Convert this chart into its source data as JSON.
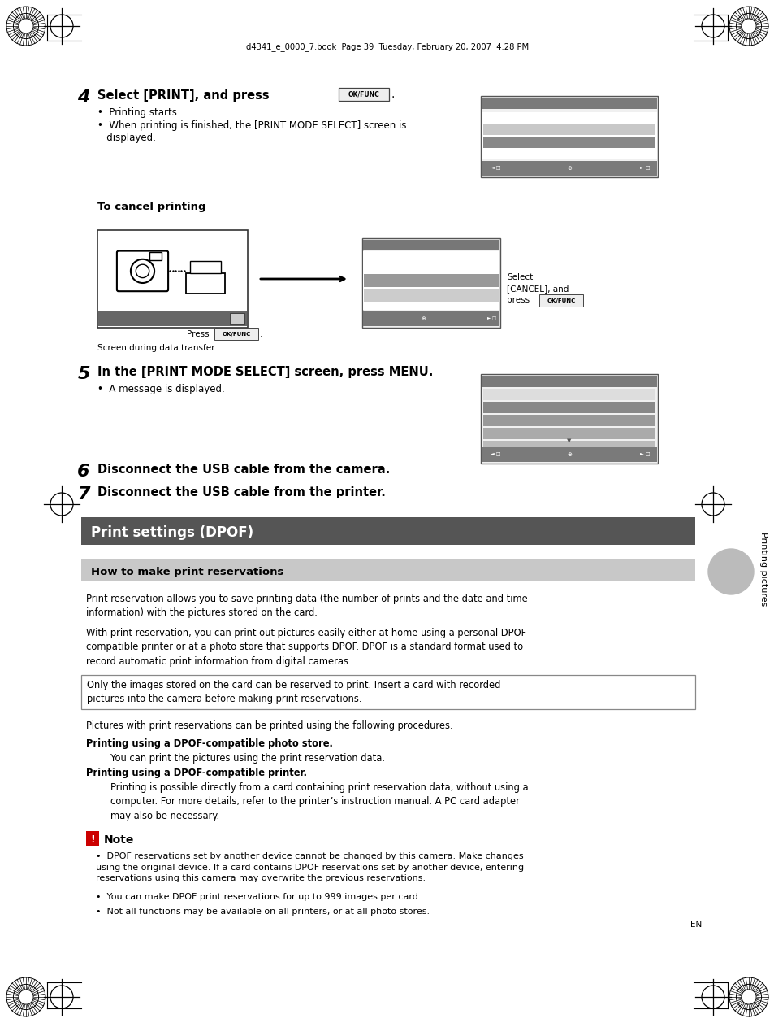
{
  "page_bg": "#ffffff",
  "header_text": "d4341_e_0000_7.book  Page 39  Tuesday, February 20, 2007  4:28 PM",
  "step4_num": "4",
  "step4_text": "Select [PRINT], and press",
  "step4_button": "OK/FUNC",
  "step4_bullet1": "Printing starts.",
  "step4_bullet2": "When printing is finished, the [PRINT MODE SELECT] screen is\n   displayed.",
  "cancel_title": "To cancel printing",
  "cancel_press": "Press",
  "cancel_button": "OK/FUNC",
  "cancel_select": "Select\n[CANCEL], and\npress",
  "cancel_button2": "OK/FUNC",
  "screen_caption": "Screen during data transfer",
  "step5_num": "5",
  "step5_text": "In the [PRINT MODE SELECT] screen, press MENU.",
  "step5_bullet": "A message is displayed.",
  "step6_num": "6",
  "step6_text": "Disconnect the USB cable from the camera.",
  "step7_num": "7",
  "step7_text": "Disconnect the USB cable from the printer.",
  "section_title": "Print settings (DPOF)",
  "section_title_bg": "#555555",
  "section_title_color": "#ffffff",
  "subsection_title": "How to make print reservations",
  "subsection_bg": "#c8c8c8",
  "para1": "Print reservation allows you to save printing data (the number of prints and the date and time\ninformation) with the pictures stored on the card.",
  "para2": "With print reservation, you can print out pictures easily either at home using a personal DPOF-\ncompatible printer or at a photo store that supports DPOF. DPOF is a standard format used to\nrecord automatic print information from digital cameras.",
  "note_box": "Only the images stored on the card can be reserved to print. Insert a card with recorded\npictures into the camera before making print reservations.",
  "para3": "Pictures with print reservations can be printed using the following procedures.",
  "bold1": "Printing using a DPOF-compatible photo store.",
  "indent1": "You can print the pictures using the print reservation data.",
  "bold2": "Printing using a DPOF-compatible printer.",
  "indent2": "Printing is possible directly from a card containing print reservation data, without using a\ncomputer. For more details, refer to the printer’s instruction manual. A PC card adapter\nmay also be necessary.",
  "note_title": "Note",
  "note_bullet1": "DPOF reservations set by another device cannot be changed by this camera. Make changes\nusing the original device. If a card contains DPOF reservations set by another device, entering\nreservations using this camera may overwrite the previous reservations.",
  "note_bullet2": "You can make DPOF print reservations for up to 999 images per card.",
  "note_bullet3": "Not all functions may be available on all printers, or at all photo stores.",
  "en_label": "EN",
  "side_label": "Printing pictures"
}
